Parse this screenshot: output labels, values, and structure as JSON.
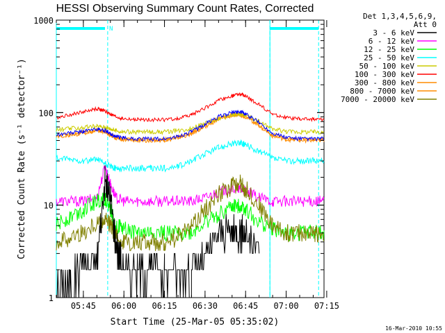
{
  "chart_data": {
    "type": "line",
    "title": "HESSI Observing Summary Count Rates, Corrected",
    "xlabel": "Start Time (25-Mar-05 05:35:02)",
    "ylabel": "Corrected Count Rate (s⁻¹ detector⁻¹)",
    "yscale": "log",
    "ylim": [
      1,
      1000
    ],
    "xlim_minutes": [
      0,
      99
    ],
    "x_ticks": [
      "05:45",
      "06:00",
      "06:15",
      "06:30",
      "06:45",
      "07:00",
      "07:15"
    ],
    "y_ticks": [
      "1",
      "10",
      "100",
      "1000"
    ],
    "legend_header": [
      "Det 1,3,4,5,6,9,",
      "Att 0"
    ],
    "legend_position": "top-right",
    "date_stamp": "16-Mar-2010 10:55",
    "night_bar_marker": "N",
    "series_x_minutes": [
      0,
      5,
      10,
      15,
      18,
      20,
      22,
      25,
      30,
      35,
      40,
      45,
      50,
      55,
      60,
      65,
      68,
      70,
      75,
      80,
      85,
      90,
      95,
      99
    ],
    "series": [
      {
        "name": "3 - 6 keV",
        "color": "#000000",
        "values": [
          1.4,
          1.5,
          2.5,
          2.5,
          18,
          12,
          4,
          2,
          2,
          2,
          2,
          2,
          2,
          2.5,
          5,
          5,
          5,
          5,
          3,
          null,
          null,
          null,
          null,
          null
        ]
      },
      {
        "name": "6 - 12 keV",
        "color": "#ff00ff",
        "values": [
          11,
          11,
          11,
          12,
          26,
          17,
          12,
          11,
          11,
          11,
          11,
          11,
          11,
          12,
          14,
          15,
          15,
          14,
          12,
          11,
          11,
          11,
          11,
          11
        ]
      },
      {
        "name": "12 - 25 keV",
        "color": "#00ff00",
        "values": [
          6,
          7.5,
          9,
          11,
          12,
          9,
          6,
          5.5,
          5,
          5,
          5,
          5,
          5,
          6.5,
          8,
          9.5,
          10,
          9,
          6.5,
          5.5,
          5,
          5,
          5,
          5
        ]
      },
      {
        "name": "25 - 50 keV",
        "color": "#00ffff",
        "values": [
          32,
          31,
          30,
          31,
          28,
          26,
          25,
          25,
          25,
          25,
          25,
          26,
          30,
          36,
          42,
          46,
          47,
          45,
          38,
          32,
          30,
          30,
          30,
          30
        ]
      },
      {
        "name": "50 - 100 keV",
        "color": "#cccc00",
        "values": [
          65,
          67,
          69,
          71,
          70,
          67,
          64,
          62,
          62,
          62,
          62,
          64,
          68,
          76,
          86,
          94,
          96,
          93,
          80,
          66,
          63,
          62,
          62,
          62
        ]
      },
      {
        "name": "100 - 300 keV",
        "color": "#ff0000",
        "values": [
          88,
          95,
          102,
          110,
          104,
          96,
          90,
          85,
          84,
          84,
          84,
          86,
          95,
          112,
          135,
          152,
          158,
          150,
          122,
          96,
          88,
          85,
          85,
          85
        ]
      },
      {
        "name": "300 - 800 keV",
        "color": "#ff8c00",
        "values": [
          56,
          58,
          61,
          65,
          63,
          58,
          54,
          52,
          51,
          51,
          51,
          54,
          60,
          72,
          86,
          95,
          97,
          92,
          74,
          58,
          52,
          51,
          51,
          51
        ]
      },
      {
        "name": "800 - 7000 keV",
        "color": "#ff8c00",
        "values": [
          55,
          57,
          60,
          64,
          62,
          57,
          53,
          51,
          50,
          50,
          50,
          53,
          59,
          71,
          84,
          93,
          95,
          90,
          72,
          56,
          51,
          50,
          50,
          50
        ]
      },
      {
        "name": "7000 - 20000 keV",
        "color": "#808000",
        "values": [
          4,
          4.5,
          5,
          6.5,
          7,
          6,
          4.5,
          4,
          4,
          4,
          4,
          4.5,
          6,
          9,
          13,
          16,
          17,
          15,
          10,
          6,
          5,
          5,
          5,
          5
        ]
      }
    ],
    "extra_trace": {
      "color": "#0000ff",
      "values": [
        58,
        60,
        63,
        66,
        64,
        59,
        55,
        53,
        52,
        52,
        52,
        55,
        62,
        75,
        90,
        100,
        103,
        96,
        78,
        60,
        54,
        52,
        52,
        52
      ]
    },
    "guide_lines_minutes": {
      "cyan_solid": [
        0,
        79
      ],
      "cyan_dashed": [
        19,
        79,
        97
      ]
    },
    "top_bars_minutes": [
      [
        0,
        18
      ],
      [
        79,
        97
      ]
    ]
  }
}
